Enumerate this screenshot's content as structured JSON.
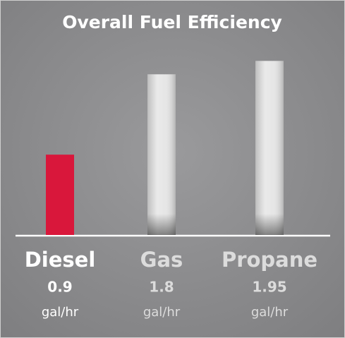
{
  "chart_data": {
    "type": "bar",
    "title": "Overall Fuel Efficiency",
    "categories": [
      "Diesel",
      "Gas",
      "Propane"
    ],
    "values": [
      0.9,
      1.8,
      1.95
    ],
    "units": [
      "gal/hr",
      "gal/hr",
      "gal/hr"
    ],
    "colors": [
      "#d9173b",
      "#e6e6e6",
      "#e6e6e6"
    ],
    "highlight_index": 0,
    "ylim": [
      0,
      2
    ]
  }
}
